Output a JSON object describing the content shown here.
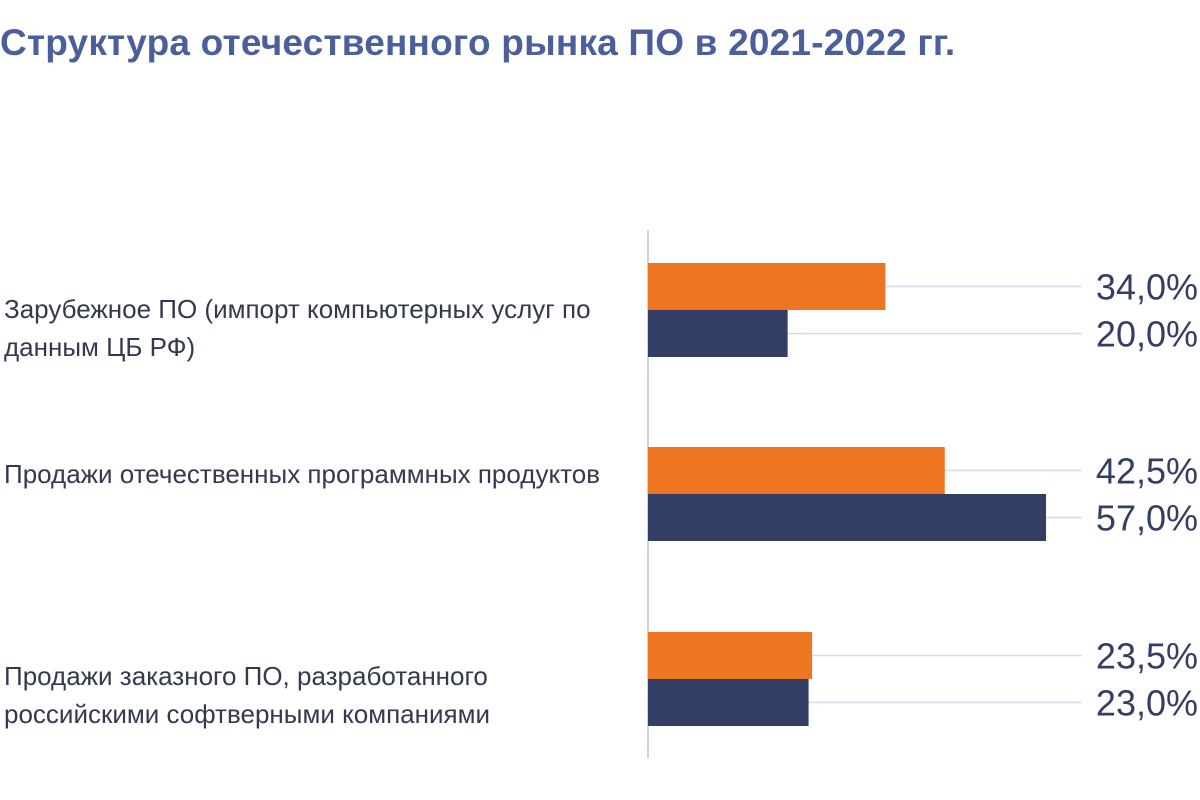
{
  "title": "Структура отечественного рынка ПО в 2021-2022 гг.",
  "colors": {
    "title": "#4a5f9c",
    "series_2021": "#ee7623",
    "series_2022": "#333e64",
    "gridline": "#d5dbea",
    "axis": "#c9d1e6",
    "category_text": "#333a4d"
  },
  "chart_data": {
    "type": "bar",
    "orientation": "horizontal",
    "title": "Структура отечественного рынка ПО в 2021-2022 гг.",
    "categories": [
      "Зарубежное ПО (импорт компьютерных услуг по данным ЦБ РФ)",
      "Продажи отечественных программных продуктов",
      "Продажи заказного ПО, разработанного российскими софтверными компаниями"
    ],
    "series": [
      {
        "values": [
          34.0,
          42.5,
          23.5
        ],
        "labels": [
          "34,0%",
          "42,5%",
          "23,5%"
        ]
      },
      {
        "values": [
          20.0,
          57.0,
          23.0
        ],
        "labels": [
          "20,0%",
          "57,0%",
          "23,0%"
        ]
      }
    ],
    "unit": "%",
    "xlim": [
      0,
      57
    ],
    "legend": "none",
    "grid": true
  }
}
